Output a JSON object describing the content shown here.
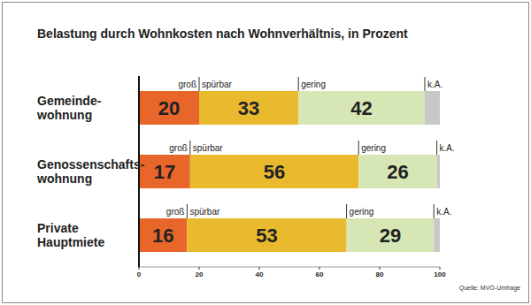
{
  "chart_data": {
    "type": "bar",
    "orientation": "horizontal",
    "stacked": true,
    "data_labels": true,
    "title": "Belastung durch Wohnkosten nach Wohnverhältnis, in Prozent",
    "annotations": [
      "Quelle: MVÖ-Umfrage"
    ],
    "categories": [
      "Gemeinde-\nwohnung",
      "Genossenschafts-\nwohnung",
      "Private\nHauptmiete"
    ],
    "series": [
      {
        "name": "groß",
        "color": "#e8662a",
        "values": [
          20,
          17,
          16
        ]
      },
      {
        "name": "spürbar",
        "color": "#e9b92e",
        "values": [
          33,
          56,
          53
        ]
      },
      {
        "name": "gering",
        "color": "#d6e6b5",
        "values": [
          42,
          26,
          29
        ]
      },
      {
        "name": "k.A.",
        "color": "#c8c8c8",
        "values": [
          5,
          1,
          2
        ],
        "data_labels": false
      }
    ],
    "xlim": [
      0,
      100
    ],
    "xticks": [
      0,
      20,
      40,
      60,
      80,
      100
    ],
    "grid": false,
    "legend": "none"
  }
}
